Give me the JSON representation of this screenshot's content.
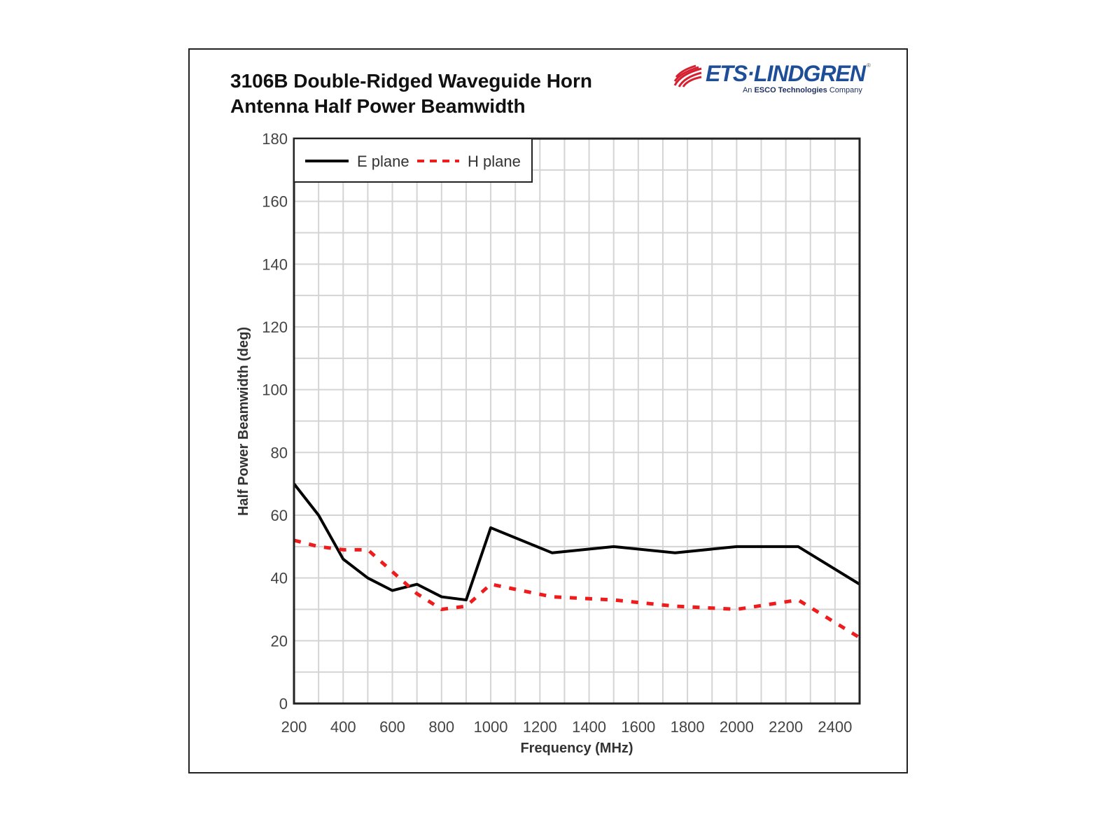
{
  "title_line1": "3106B Double-Ridged Waveguide Horn",
  "title_line2": "Antenna Half Power Beamwidth",
  "logo": {
    "brand": "ETS·LINDGREN",
    "sub_prefix": "An ",
    "sub_bold": "ESCO Technologies",
    "sub_suffix": " Company",
    "reg": "®",
    "red": "#d42030",
    "blue": "#1f4e99"
  },
  "chart_data": {
    "type": "line",
    "title": "3106B Double-Ridged Waveguide Horn Antenna Half Power Beamwidth",
    "xlabel": "Frequency (MHz)",
    "ylabel": "Half Power Beamwidth (deg)",
    "xlim": [
      200,
      2500
    ],
    "ylim": [
      0,
      180
    ],
    "xticks": [
      200,
      400,
      600,
      800,
      1000,
      1200,
      1400,
      1600,
      1800,
      2000,
      2200,
      2400
    ],
    "yticks": [
      0,
      20,
      40,
      60,
      80,
      100,
      120,
      140,
      160,
      180
    ],
    "grid": true,
    "legend_position": "top-left",
    "series": [
      {
        "name": "E plane",
        "color": "#000000",
        "style": "solid",
        "x": [
          200,
          300,
          400,
          500,
          600,
          700,
          800,
          900,
          1000,
          1250,
          1500,
          1750,
          2000,
          2250,
          2500
        ],
        "y": [
          70,
          60,
          46,
          40,
          36,
          38,
          34,
          33,
          56,
          48,
          50,
          48,
          50,
          50,
          38
        ]
      },
      {
        "name": "H plane",
        "color": "#ee1c1c",
        "style": "dashed",
        "x": [
          200,
          300,
          400,
          500,
          600,
          700,
          800,
          900,
          1000,
          1250,
          1500,
          1750,
          2000,
          2250,
          2500
        ],
        "y": [
          52,
          50,
          49,
          49,
          42,
          35,
          30,
          31,
          38,
          34,
          33,
          31,
          30,
          33,
          21
        ]
      }
    ]
  }
}
